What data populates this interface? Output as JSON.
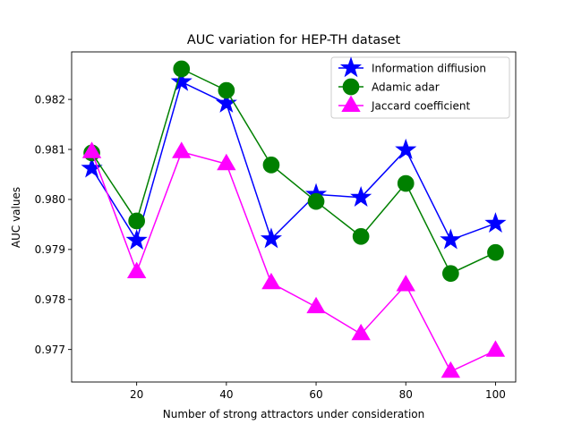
{
  "chart_data": {
    "type": "line",
    "title": "AUC variation for HEP-TH dataset",
    "xlabel": "Number of strong attractors under consideration",
    "ylabel": "AUC values",
    "xlim": [
      5.5,
      104.5
    ],
    "ylim": [
      0.97635,
      0.98295
    ],
    "xticks": [
      20,
      40,
      60,
      80,
      100
    ],
    "xtick_labels": [
      "20",
      "40",
      "60",
      "80",
      "100"
    ],
    "yticks": [
      0.977,
      0.978,
      0.979,
      0.98,
      0.981,
      0.982
    ],
    "ytick_labels": [
      "0.977",
      "0.978",
      "0.979",
      "0.980",
      "0.981",
      "0.982"
    ],
    "grid": false,
    "legend_position": "top-right",
    "x": [
      10,
      20,
      30,
      40,
      50,
      60,
      70,
      80,
      90,
      100
    ],
    "series": [
      {
        "name": "Information diffiusion",
        "color": "#0000ff",
        "marker": "star",
        "values": [
          0.98062,
          0.97918,
          0.98235,
          0.98192,
          0.97921,
          0.9801,
          0.98004,
          0.98099,
          0.97919,
          0.97952
        ]
      },
      {
        "name": "Adamic adar",
        "color": "#008000",
        "marker": "circle",
        "values": [
          0.98093,
          0.97957,
          0.98261,
          0.98218,
          0.98069,
          0.97996,
          0.97926,
          0.98032,
          0.97852,
          0.97894
        ]
      },
      {
        "name": "Jaccard coefficient",
        "color": "#ff00ff",
        "marker": "triangle",
        "values": [
          0.98095,
          0.97855,
          0.98095,
          0.98071,
          0.97833,
          0.97785,
          0.97731,
          0.97829,
          0.97656,
          0.97698
        ]
      }
    ]
  }
}
